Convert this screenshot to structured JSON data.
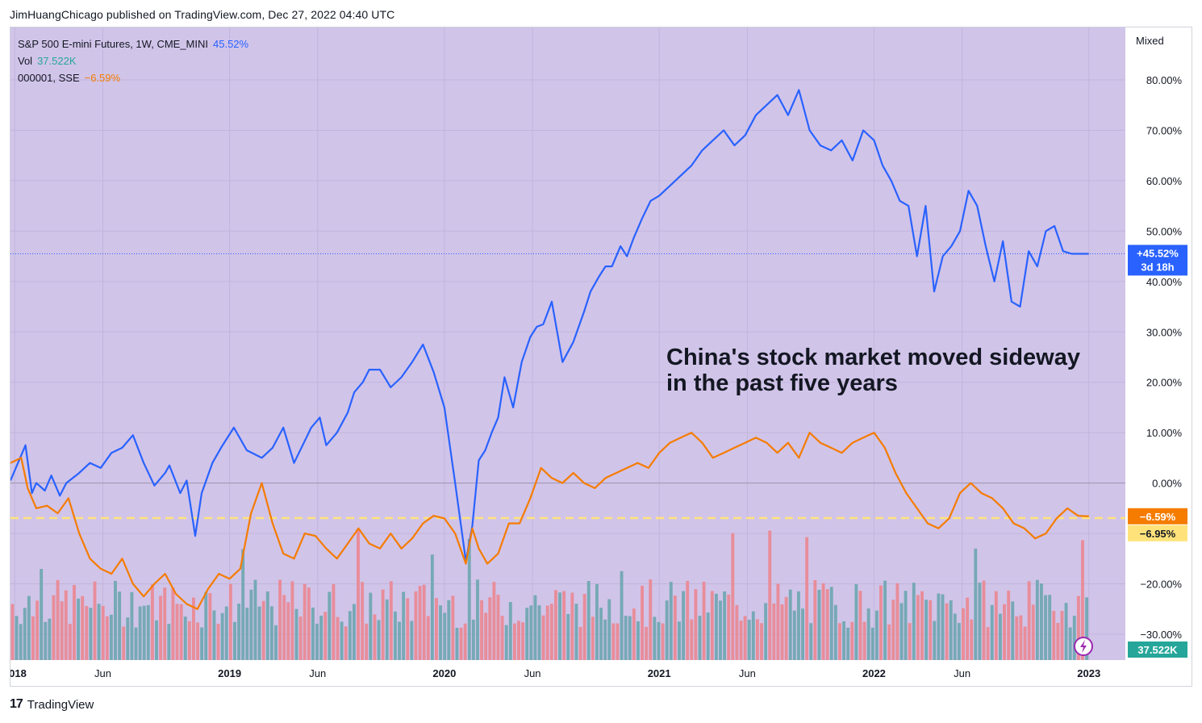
{
  "header": {
    "text": "JimHuangChicago published on TradingView.com, Dec 27, 2022 04:40 UTC"
  },
  "legend": {
    "row1_label": "S&P 500 E-mini Futures, 1W, CME_MINI",
    "row1_value": "45.52%",
    "row2_label": "Vol",
    "row2_value": "37.522K",
    "row3_label": "000001, SSE",
    "row3_value": "−6.59%"
  },
  "scale_mode": "Mixed",
  "annotation": {
    "line1": "China's stock market moved sideway",
    "line2": "in the past five years"
  },
  "tags": {
    "spx_value": "+45.52%",
    "spx_countdown": "3d 18h",
    "sse_value": "−6.59%",
    "sse_ref": "−6.95%",
    "volume": "37.522K"
  },
  "footer": {
    "brand": "TradingView",
    "logo": "17"
  },
  "colors": {
    "background": "#d1c4e9",
    "spx": "#2962ff",
    "sse": "#f57c00",
    "vol_up": "#76a9b5",
    "vol_down": "#e88d9a",
    "ref_line": "#ffe37a",
    "zero_line": "#9e96b0"
  },
  "chart_data": {
    "type": "line",
    "y_unit": "%",
    "ylim": [
      -30,
      85
    ],
    "y_ticks": [
      "80.00%",
      "70.00%",
      "60.00%",
      "50.00%",
      "40.00%",
      "30.00%",
      "20.00%",
      "10.00%",
      "0.00%",
      "−10.00%",
      "−20.00%",
      "−30.00%"
    ],
    "y_tick_values": [
      80,
      70,
      60,
      50,
      40,
      30,
      20,
      10,
      0,
      -10,
      -20,
      -30
    ],
    "x_ticks": [
      "2018",
      "Jun",
      "2019",
      "Jun",
      "2020",
      "Jun",
      "2021",
      "Jun",
      "2022",
      "Jun",
      "2023"
    ],
    "x_tick_values": [
      2018.0,
      2018.41,
      2019.0,
      2019.41,
      2020.0,
      2020.41,
      2021.0,
      2021.41,
      2022.0,
      2022.41,
      2023.0
    ],
    "xlim": [
      2017.98,
      2023.0
    ],
    "grid": true,
    "reference_line": -6.95,
    "series": [
      {
        "name": "S&P 500 E-mini Futures, 1W, CME_MINI",
        "x": [
          2017.98,
          2018.05,
          2018.08,
          2018.1,
          2018.14,
          2018.17,
          2018.21,
          2018.24,
          2018.3,
          2018.35,
          2018.4,
          2018.45,
          2018.5,
          2018.55,
          2018.6,
          2018.65,
          2018.7,
          2018.72,
          2018.77,
          2018.8,
          2018.84,
          2018.87,
          2018.92,
          2018.96,
          2019.02,
          2019.08,
          2019.15,
          2019.2,
          2019.25,
          2019.3,
          2019.38,
          2019.42,
          2019.45,
          2019.5,
          2019.55,
          2019.58,
          2019.62,
          2019.65,
          2019.7,
          2019.75,
          2019.8,
          2019.85,
          2019.9,
          2019.95,
          2020.0,
          2020.05,
          2020.1,
          2020.13,
          2020.16,
          2020.19,
          2020.22,
          2020.25,
          2020.28,
          2020.32,
          2020.36,
          2020.4,
          2020.43,
          2020.46,
          2020.5,
          2020.55,
          2020.6,
          2020.65,
          2020.68,
          2020.72,
          2020.75,
          2020.78,
          2020.82,
          2020.85,
          2020.88,
          2020.92,
          2020.96,
          2021.0,
          2021.05,
          2021.1,
          2021.15,
          2021.2,
          2021.25,
          2021.3,
          2021.35,
          2021.4,
          2021.45,
          2021.5,
          2021.55,
          2021.6,
          2021.65,
          2021.7,
          2021.75,
          2021.8,
          2021.85,
          2021.9,
          2021.95,
          2022.0,
          2022.04,
          2022.08,
          2022.12,
          2022.16,
          2022.2,
          2022.24,
          2022.28,
          2022.32,
          2022.36,
          2022.4,
          2022.44,
          2022.48,
          2022.52,
          2022.56,
          2022.6,
          2022.64,
          2022.68,
          2022.72,
          2022.76,
          2022.8,
          2022.84,
          2022.88,
          2022.92,
          2022.96,
          2023.0
        ],
        "values": [
          0.5,
          7.5,
          -2,
          0,
          -1.5,
          1.5,
          -2.5,
          0,
          2,
          4,
          3,
          6,
          7,
          9.5,
          4,
          -0.5,
          2,
          3.5,
          -2,
          0.5,
          -10.5,
          -2,
          4,
          7,
          11,
          6.5,
          5,
          7,
          11,
          4,
          11,
          13,
          7.5,
          10,
          14,
          18,
          20,
          22.5,
          22.5,
          19,
          21,
          24,
          27.5,
          22,
          15,
          0,
          -15.5,
          -8.5,
          4.5,
          6.5,
          10,
          13,
          21,
          15,
          24,
          29,
          31,
          31.5,
          36,
          24,
          28,
          34,
          38,
          41,
          43,
          43,
          47,
          45,
          48.5,
          52.5,
          56,
          57,
          59,
          61,
          63,
          66,
          68,
          70,
          67,
          69,
          73,
          75,
          77,
          73,
          78,
          70,
          67,
          66,
          68,
          64,
          70,
          68,
          63,
          60,
          56,
          55,
          45,
          55,
          38,
          45,
          47,
          50,
          58,
          55,
          47,
          40,
          48,
          36,
          35,
          46,
          43,
          50,
          51,
          46,
          45.5,
          45.5,
          45.5
        ],
        "color": "#2962ff"
      },
      {
        "name": "000001, SSE",
        "x": [
          2017.98,
          2018.03,
          2018.06,
          2018.1,
          2018.15,
          2018.2,
          2018.25,
          2018.3,
          2018.35,
          2018.4,
          2018.45,
          2018.5,
          2018.55,
          2018.6,
          2018.65,
          2018.7,
          2018.75,
          2018.8,
          2018.85,
          2018.9,
          2018.95,
          2019.0,
          2019.05,
          2019.1,
          2019.15,
          2019.2,
          2019.25,
          2019.3,
          2019.35,
          2019.4,
          2019.45,
          2019.5,
          2019.55,
          2019.6,
          2019.65,
          2019.7,
          2019.75,
          2019.8,
          2019.85,
          2019.9,
          2019.95,
          2020.0,
          2020.05,
          2020.1,
          2020.13,
          2020.16,
          2020.2,
          2020.25,
          2020.3,
          2020.35,
          2020.4,
          2020.45,
          2020.5,
          2020.55,
          2020.6,
          2020.65,
          2020.7,
          2020.75,
          2020.8,
          2020.85,
          2020.9,
          2020.95,
          2021.0,
          2021.05,
          2021.1,
          2021.15,
          2021.2,
          2021.25,
          2021.3,
          2021.35,
          2021.4,
          2021.45,
          2021.5,
          2021.55,
          2021.6,
          2021.65,
          2021.7,
          2021.75,
          2021.8,
          2021.85,
          2021.9,
          2021.95,
          2022.0,
          2022.05,
          2022.1,
          2022.15,
          2022.2,
          2022.25,
          2022.3,
          2022.35,
          2022.4,
          2022.45,
          2022.5,
          2022.55,
          2022.6,
          2022.65,
          2022.7,
          2022.75,
          2022.8,
          2022.85,
          2022.9,
          2022.95,
          2023.0
        ],
        "values": [
          4,
          5,
          -1,
          -5,
          -4.5,
          -6,
          -3,
          -10,
          -15,
          -17,
          -18,
          -15,
          -20,
          -22.5,
          -20,
          -18,
          -22,
          -24,
          -25,
          -21,
          -18,
          -19,
          -17,
          -6,
          0,
          -8,
          -14,
          -15,
          -10,
          -10.5,
          -13,
          -15,
          -12,
          -9,
          -12,
          -13,
          -10,
          -13,
          -11,
          -8,
          -6.5,
          -7,
          -10,
          -16,
          -9,
          -13,
          -16,
          -14,
          -8,
          -8,
          -3,
          3,
          1,
          0,
          2,
          0,
          -1,
          1,
          2,
          3,
          4,
          3,
          6,
          8,
          9,
          10,
          8,
          5,
          6,
          7,
          8,
          9,
          8,
          6,
          8,
          5,
          10,
          8,
          7,
          6,
          8,
          9,
          10,
          7,
          2,
          -2,
          -5,
          -8,
          -9,
          -7,
          -2,
          0,
          -2,
          -3,
          -5,
          -8,
          -9,
          -11,
          -10,
          -7,
          -5,
          -6.5,
          -6.6
        ],
        "color": "#f57c00"
      }
    ]
  }
}
